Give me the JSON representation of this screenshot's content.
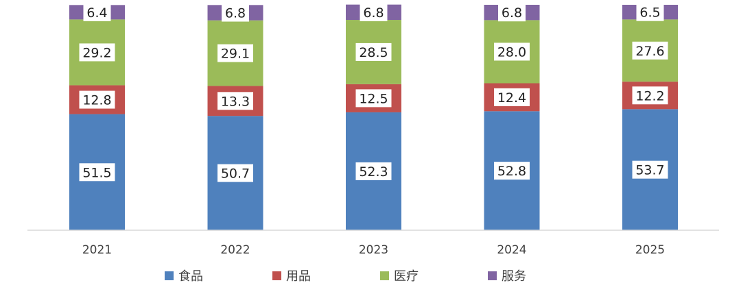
{
  "chart_data": {
    "type": "bar",
    "stacked": true,
    "categories": [
      "2021",
      "2022",
      "2023",
      "2024",
      "2025"
    ],
    "series": [
      {
        "name": "食品",
        "color": "#4f81bd",
        "values": [
          51.5,
          50.7,
          52.3,
          52.8,
          53.7
        ]
      },
      {
        "name": "用品",
        "color": "#c0504d",
        "values": [
          12.8,
          13.3,
          12.5,
          12.4,
          12.2
        ]
      },
      {
        "name": "医疗",
        "color": "#9bbb59",
        "values": [
          29.2,
          29.1,
          28.5,
          28.0,
          27.6
        ]
      },
      {
        "name": "服务",
        "color": "#8064a2",
        "values": [
          6.4,
          6.8,
          6.8,
          6.8,
          6.5
        ]
      }
    ],
    "ylim": [
      0,
      100
    ],
    "legend_position": "bottom",
    "grid": false
  }
}
